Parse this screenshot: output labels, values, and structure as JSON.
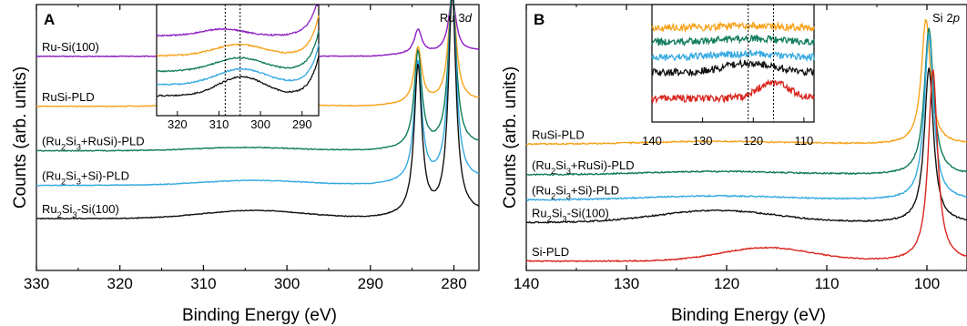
{
  "colors": {
    "purple": "#8e1ec4",
    "orange": "#f5a21b",
    "green": "#0f7a5c",
    "blue": "#34a9e0",
    "black": "#111111",
    "red": "#d9251d"
  },
  "chart_data": [
    {
      "type": "line",
      "panel_label": "A",
      "corner_label": {
        "element": "Ru",
        "orbital": "3",
        "sub": "d"
      },
      "xlabel": "Binding Energy (eV)",
      "ylabel": "Counts (arb. units)",
      "xlim": [
        330,
        277
      ],
      "x_ticks": [
        330,
        320,
        310,
        300,
        290,
        280
      ],
      "x_tick_labels": [
        "330",
        "320",
        "310",
        "300",
        "290",
        "280"
      ],
      "peaks": [
        284.3,
        280.2
      ],
      "peak_width": 0.55,
      "series": [
        {
          "name_parts": [
            [
              "Ru-Si(100)",
              ""
            ]
          ],
          "color_key": "purple",
          "baseline": 0.195,
          "peak_amp": [
            0.09,
            0.205
          ],
          "hump": [
            0,
            0,
            0
          ],
          "edge": [
            0.01,
            0.3
          ],
          "tail": 0.02,
          "noise": 0.003
        },
        {
          "name_parts": [
            [
              "RuSi-PLD",
              ""
            ]
          ],
          "color_key": "orange",
          "baseline": 0.383,
          "peak_amp": [
            0.21,
            0.42
          ],
          "hump": [
            0.01,
            305,
            6
          ],
          "edge": [
            0.015,
            0.3
          ],
          "tail": 0.02,
          "noise": 0.003
        },
        {
          "name_parts": [
            [
              "(Ru",
              ""
            ],
            [
              "2",
              "sub"
            ],
            [
              "Si",
              ""
            ],
            [
              "3",
              "sub"
            ],
            [
              "+RuSi)-PLD",
              ""
            ]
          ],
          "color_key": "green",
          "baseline": 0.55,
          "peak_amp": [
            0.36,
            0.6
          ],
          "hump": [
            0.012,
            305,
            6
          ],
          "edge": [
            0.015,
            0.3
          ],
          "tail": 0.02,
          "noise": 0.003
        },
        {
          "name_parts": [
            [
              "(Ru",
              ""
            ],
            [
              "2",
              "sub"
            ],
            [
              "Si",
              ""
            ],
            [
              "3",
              "sub"
            ],
            [
              "+Si)-PLD",
              ""
            ]
          ],
          "color_key": "blue",
          "baseline": 0.68,
          "peak_amp": [
            0.45,
            0.74
          ],
          "hump": [
            0.018,
            304,
            6
          ],
          "edge": [
            0.015,
            0.3
          ],
          "tail": 0.02,
          "noise": 0.003
        },
        {
          "name_parts": [
            [
              "Ru",
              ""
            ],
            [
              "2",
              "sub"
            ],
            [
              "Si",
              ""
            ],
            [
              "3",
              "sub"
            ],
            [
              "-Si(100)",
              ""
            ]
          ],
          "color_key": "black",
          "baseline": 0.805,
          "peak_amp": [
            0.56,
            0.83
          ],
          "hump": [
            0.03,
            304,
            6
          ],
          "edge": [
            0.015,
            0.3
          ],
          "tail": 0.02,
          "noise": 0.003
        }
      ],
      "inset": {
        "xlim": [
          325,
          286
        ],
        "x_ticks": [
          320,
          310,
          300,
          290
        ],
        "x_tick_labels": [
          "320",
          "310",
          "300",
          "290"
        ],
        "vlines": [
          308.5,
          304.9
        ],
        "series": [
          {
            "color_key": "purple",
            "base": 0.28,
            "hump": [
              0.06,
              309,
              5
            ]
          },
          {
            "color_key": "orange",
            "base": 0.46,
            "hump": [
              0.1,
              305,
              6
            ]
          },
          {
            "color_key": "green",
            "base": 0.6,
            "hump": [
              0.12,
              305,
              6
            ]
          },
          {
            "color_key": "blue",
            "base": 0.72,
            "hump": [
              0.14,
              304.5,
              6
            ]
          },
          {
            "color_key": "black",
            "base": 0.82,
            "hump": [
              0.17,
              304.5,
              5.5
            ]
          }
        ]
      }
    },
    {
      "type": "line",
      "panel_label": "B",
      "corner_label": {
        "element": "Si",
        "orbital": "2",
        "sub": "p"
      },
      "xlabel": "Binding Energy (eV)",
      "ylabel": "Counts (arb. units)",
      "xlim": [
        140,
        96
      ],
      "x_ticks": [
        140,
        130,
        120,
        110,
        100
      ],
      "x_tick_labels": [
        "140",
        "130",
        "120",
        "110",
        "100"
      ],
      "series": [
        {
          "name_parts": [
            [
              "RuSi-PLD",
              ""
            ]
          ],
          "color_key": "orange",
          "baseline": 0.525,
          "peak_pos": 100.1,
          "peak_amp": 0.47,
          "peak_width": 0.55,
          "hump": [
            0.01,
            121,
            7
          ],
          "noise": 0.005
        },
        {
          "name_parts": [
            [
              "(Ru",
              ""
            ],
            [
              "2",
              "sub"
            ],
            [
              "Si",
              ""
            ],
            [
              "3",
              "sub"
            ],
            [
              "+RuSi)-PLD",
              ""
            ]
          ],
          "color_key": "green",
          "baseline": 0.64,
          "peak_pos": 99.8,
          "peak_amp": 0.55,
          "peak_width": 0.55,
          "hump": [
            0.012,
            121,
            7
          ],
          "noise": 0.005
        },
        {
          "name_parts": [
            [
              "(Ru",
              ""
            ],
            [
              "2",
              "sub"
            ],
            [
              "Si",
              ""
            ],
            [
              "3",
              "sub"
            ],
            [
              "+Si)-PLD",
              ""
            ]
          ],
          "color_key": "blue",
          "baseline": 0.735,
          "peak_pos": 99.8,
          "peak_amp": 0.62,
          "peak_width": 0.55,
          "hump": [
            0.015,
            121,
            7
          ],
          "noise": 0.005
        },
        {
          "name_parts": [
            [
              "Ru",
              ""
            ],
            [
              "2",
              "sub"
            ],
            [
              "Si",
              ""
            ],
            [
              "3",
              "sub"
            ],
            [
              "-Si(100)",
              ""
            ]
          ],
          "color_key": "black",
          "baseline": 0.82,
          "peak_pos": 99.8,
          "peak_amp": 0.58,
          "peak_width": 0.55,
          "hump": [
            0.045,
            121,
            6
          ],
          "noise": 0.005
        },
        {
          "name_parts": [
            [
              "Si-PLD",
              ""
            ]
          ],
          "color_key": "red",
          "baseline": 0.965,
          "peak_pos": 99.4,
          "peak_amp": 0.72,
          "peak_width": 0.55,
          "hump": [
            0.05,
            116,
            4.5
          ],
          "noise": 0.004
        }
      ],
      "inset": {
        "xlim": [
          140,
          108
        ],
        "x_ticks": [
          140,
          130,
          120,
          110
        ],
        "x_tick_labels": [
          "140",
          "130",
          "120",
          "110"
        ],
        "vlines": [
          121,
          116
        ],
        "series": [
          {
            "color_key": "orange",
            "base": 0.2,
            "hump": [
              0.02,
              121,
              6
            ]
          },
          {
            "color_key": "green",
            "base": 0.32,
            "hump": [
              0.03,
              121,
              6
            ]
          },
          {
            "color_key": "blue",
            "base": 0.45,
            "hump": [
              0.03,
              121,
              6
            ]
          },
          {
            "color_key": "black",
            "base": 0.58,
            "hump": [
              0.08,
              121,
              5
            ]
          },
          {
            "color_key": "red",
            "base": 0.8,
            "hump": [
              0.14,
              116,
              3
            ]
          }
        ]
      }
    }
  ]
}
